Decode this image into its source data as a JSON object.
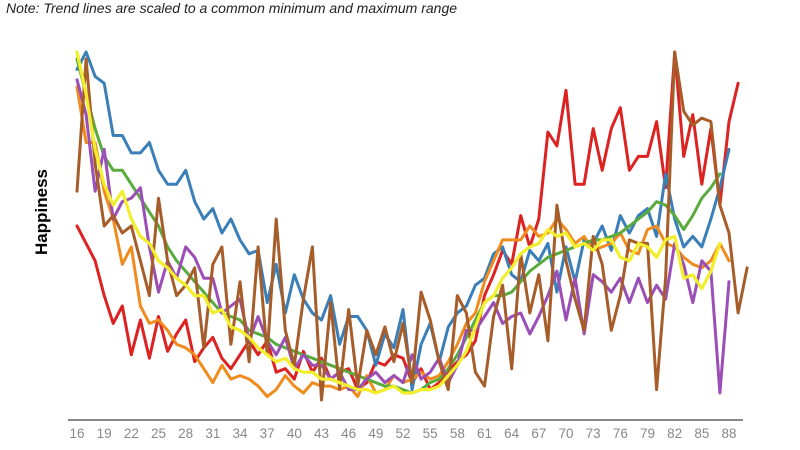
{
  "note": "Note: Trend lines are scaled to a common minimum and maximum range",
  "chart_data": {
    "type": "line",
    "title": "",
    "xlabel": "",
    "ylabel": "Happiness",
    "x_range": [
      16,
      90
    ],
    "ylim": [
      0,
      100
    ],
    "x_tick_labels": [
      "16",
      "19",
      "22",
      "25",
      "28",
      "31",
      "34",
      "37",
      "40",
      "43",
      "46",
      "49",
      "52",
      "55",
      "58",
      "61",
      "64",
      "67",
      "70",
      "73",
      "76",
      "79",
      "82",
      "85",
      "88"
    ],
    "grid": false,
    "legend": "none",
    "series": [
      {
        "color": "#dd2222",
        "x": [
          16,
          17,
          18,
          19,
          20,
          21,
          22,
          23,
          24,
          25,
          26,
          27,
          28,
          29,
          30,
          31,
          32,
          33,
          34,
          35,
          36,
          37,
          38,
          39,
          40,
          41,
          42,
          43,
          44,
          45,
          46,
          47,
          48,
          49,
          50,
          51,
          52,
          53,
          54,
          55,
          56,
          57,
          58,
          59,
          60,
          61,
          62,
          63,
          64,
          65,
          66,
          67,
          68,
          69,
          70,
          71,
          72,
          73,
          74,
          75,
          76,
          77,
          78,
          79,
          80,
          81,
          82,
          83,
          84,
          85,
          86,
          87,
          88,
          89
        ],
        "y": [
          50,
          45,
          40,
          30,
          22,
          27,
          13,
          23,
          12,
          24,
          14,
          19,
          23,
          11,
          15,
          18,
          12,
          9,
          13,
          17,
          13,
          17,
          8,
          9,
          6,
          14,
          8,
          12,
          6,
          8,
          9,
          3,
          5,
          11,
          10,
          13,
          12,
          5,
          9,
          3,
          5,
          8,
          11,
          13,
          17,
          30,
          36,
          43,
          39,
          53,
          44,
          52,
          77,
          73,
          89,
          62,
          62,
          78,
          66,
          78,
          84,
          66,
          70,
          70,
          80,
          61,
          100,
          70,
          82,
          62,
          78,
          56,
          80,
          91
        ]
      },
      {
        "color": "#3a7fb8",
        "x": [
          16,
          17,
          18,
          19,
          20,
          21,
          22,
          23,
          24,
          25,
          26,
          27,
          28,
          29,
          30,
          31,
          32,
          33,
          34,
          35,
          36,
          37,
          38,
          39,
          40,
          41,
          42,
          43,
          44,
          45,
          46,
          47,
          48,
          49,
          50,
          51,
          52,
          53,
          54,
          55,
          56,
          57,
          58,
          59,
          60,
          61,
          62,
          63,
          64,
          65,
          66,
          67,
          68,
          69,
          70,
          71,
          72,
          73,
          74,
          75,
          76,
          77,
          78,
          79,
          80,
          81,
          82,
          83,
          84,
          85,
          86,
          87,
          88
        ],
        "y": [
          95,
          100,
          93,
          91,
          76,
          76,
          71,
          71,
          74,
          66,
          62,
          62,
          66,
          57,
          52,
          55,
          48,
          52,
          46,
          42,
          43,
          28,
          39,
          25,
          36,
          29,
          25,
          23,
          30,
          16,
          24,
          24,
          20,
          10,
          19,
          15,
          26,
          3,
          16,
          22,
          11,
          21,
          25,
          27,
          33,
          35,
          42,
          44,
          36,
          34,
          43,
          40,
          45,
          31,
          44,
          34,
          46,
          45,
          50,
          43,
          53,
          48,
          53,
          55,
          47,
          65,
          52,
          44,
          47,
          44,
          52,
          61,
          72
        ]
      },
      {
        "color": "#f08c1e",
        "x": [
          16,
          17,
          18,
          19,
          20,
          21,
          22,
          23,
          24,
          25,
          26,
          27,
          28,
          29,
          30,
          31,
          32,
          33,
          34,
          35,
          36,
          37,
          38,
          39,
          40,
          41,
          42,
          43,
          44,
          45,
          46,
          47,
          48,
          49,
          50,
          51,
          52,
          53,
          54,
          55,
          56,
          57,
          58,
          59,
          60,
          61,
          62,
          63,
          64,
          65,
          66,
          67,
          68,
          69,
          70,
          71,
          72,
          73,
          74,
          75,
          76,
          77,
          78,
          79,
          80,
          81,
          82,
          83,
          84,
          85,
          86,
          87,
          88
        ],
        "y": [
          90,
          74,
          74,
          60,
          52,
          39,
          44,
          27,
          22,
          23,
          20,
          16,
          15,
          13,
          9,
          5,
          10,
          6,
          7,
          6,
          4,
          1,
          3,
          7,
          4,
          2,
          5,
          4,
          4,
          3,
          4,
          1,
          7,
          2,
          3,
          7,
          5,
          6,
          8,
          6,
          7,
          11,
          16,
          22,
          25,
          34,
          40,
          46,
          46,
          46,
          50,
          47,
          48,
          52,
          49,
          45,
          47,
          43,
          44,
          45,
          48,
          43,
          42,
          49,
          50,
          45,
          44,
          41,
          39,
          38,
          40,
          45,
          40
        ]
      },
      {
        "color": "#5aab3e",
        "x": [
          16,
          17,
          18,
          19,
          20,
          21,
          22,
          23,
          24,
          25,
          26,
          27,
          28,
          29,
          30,
          31,
          32,
          33,
          34,
          35,
          36,
          37,
          38,
          39,
          40,
          41,
          42,
          43,
          44,
          45,
          46,
          47,
          48,
          49,
          50,
          51,
          52,
          53,
          54,
          55,
          56,
          57,
          58,
          59,
          60,
          61,
          62,
          63,
          64,
          65,
          66,
          67,
          68,
          69,
          70,
          71,
          72,
          73,
          74,
          75,
          76,
          77,
          78,
          79,
          80,
          81,
          82,
          83,
          84,
          85,
          86,
          87
        ],
        "y": [
          98,
          88,
          78,
          70,
          66,
          66,
          62,
          58,
          54,
          50,
          44,
          40,
          37,
          34,
          31,
          28,
          25,
          24,
          23,
          20,
          19,
          18,
          16,
          15,
          14,
          13,
          12,
          11,
          10,
          9,
          8,
          7,
          6,
          5,
          4,
          4,
          3,
          2,
          3,
          5,
          6,
          9,
          13,
          18,
          23,
          28,
          30,
          30,
          31,
          34,
          37,
          39,
          41,
          42,
          43,
          44,
          45,
          46,
          46,
          47,
          48,
          50,
          52,
          54,
          57,
          56,
          53,
          49,
          53,
          58,
          61,
          65
        ]
      },
      {
        "color": "#9b4fb6",
        "x": [
          16,
          17,
          18,
          19,
          20,
          21,
          22,
          23,
          24,
          25,
          26,
          27,
          28,
          29,
          30,
          31,
          32,
          33,
          34,
          35,
          36,
          37,
          38,
          39,
          40,
          41,
          42,
          43,
          44,
          45,
          46,
          47,
          48,
          49,
          50,
          51,
          52,
          53,
          54,
          55,
          56,
          57,
          58,
          59,
          60,
          61,
          62,
          63,
          64,
          65,
          66,
          67,
          68,
          69,
          70,
          71,
          72,
          73,
          74,
          75,
          76,
          77,
          78,
          79,
          80,
          81,
          82,
          83,
          84,
          85,
          86,
          87,
          88
        ],
        "y": [
          92,
          82,
          60,
          72,
          52,
          57,
          58,
          61,
          44,
          31,
          40,
          35,
          44,
          41,
          35,
          35,
          25,
          27,
          29,
          17,
          24,
          17,
          13,
          18,
          9,
          13,
          10,
          10,
          6,
          8,
          3,
          3,
          6,
          8,
          5,
          7,
          5,
          13,
          6,
          8,
          12,
          5,
          10,
          20,
          20,
          24,
          28,
          22,
          24,
          25,
          19,
          24,
          30,
          37,
          23,
          35,
          19,
          36,
          34,
          31,
          35,
          28,
          35,
          28,
          33,
          29,
          45,
          39,
          28,
          40,
          37,
          2,
          34
        ]
      },
      {
        "color": "#a65d2a",
        "x": [
          16,
          17,
          18,
          19,
          20,
          21,
          22,
          23,
          24,
          25,
          26,
          27,
          28,
          29,
          30,
          31,
          32,
          33,
          34,
          35,
          36,
          37,
          38,
          39,
          40,
          41,
          42,
          43,
          44,
          45,
          46,
          47,
          48,
          49,
          50,
          51,
          52,
          53,
          54,
          55,
          56,
          57,
          58,
          59,
          60,
          61,
          62,
          63,
          64,
          65,
          66,
          67,
          68,
          69,
          70,
          71,
          72,
          73,
          74,
          75,
          76,
          77,
          78,
          79,
          80,
          81,
          82,
          83,
          84,
          85,
          86,
          87,
          88,
          89,
          90
        ],
        "y": [
          60,
          98,
          68,
          50,
          53,
          48,
          50,
          40,
          30,
          58,
          40,
          30,
          33,
          38,
          15,
          39,
          44,
          16,
          34,
          11,
          44,
          13,
          52,
          20,
          10,
          29,
          44,
          0,
          28,
          3,
          26,
          4,
          20,
          13,
          21,
          11,
          22,
          5,
          31,
          23,
          11,
          3,
          30,
          25,
          8,
          4,
          24,
          33,
          9,
          42,
          25,
          36,
          17,
          56,
          40,
          29,
          20,
          47,
          39,
          20,
          30,
          46,
          45,
          45,
          3,
          35,
          100,
          83,
          79,
          81,
          80,
          56,
          48,
          25,
          38
        ]
      },
      {
        "color": "#f2ee2c",
        "x": [
          16,
          17,
          18,
          19,
          20,
          21,
          22,
          23,
          24,
          25,
          26,
          27,
          28,
          29,
          30,
          31,
          32,
          33,
          34,
          35,
          36,
          37,
          38,
          39,
          40,
          41,
          42,
          43,
          44,
          45,
          46,
          47,
          48,
          49,
          50,
          51,
          52,
          53,
          54,
          55,
          56,
          57,
          58,
          59,
          60,
          61,
          62,
          63,
          64,
          65,
          66,
          67,
          68,
          69,
          70,
          71,
          72,
          73,
          74,
          75,
          76,
          77,
          78,
          79,
          80,
          81,
          82,
          83,
          84,
          85,
          86,
          87
        ],
        "y": [
          100,
          88,
          72,
          62,
          56,
          60,
          52,
          47,
          45,
          40,
          38,
          35,
          33,
          30,
          30,
          25,
          26,
          21,
          20,
          18,
          15,
          13,
          11,
          12,
          9,
          8,
          8,
          6,
          6,
          5,
          4,
          3,
          3,
          2,
          3,
          4,
          2,
          2,
          3,
          3,
          4,
          7,
          10,
          14,
          21,
          28,
          30,
          35,
          38,
          42,
          44,
          45,
          49,
          47,
          48,
          44,
          45,
          43,
          46,
          46,
          41,
          40,
          45,
          44,
          41,
          46,
          47,
          35,
          36,
          32,
          37,
          45
        ]
      }
    ]
  }
}
